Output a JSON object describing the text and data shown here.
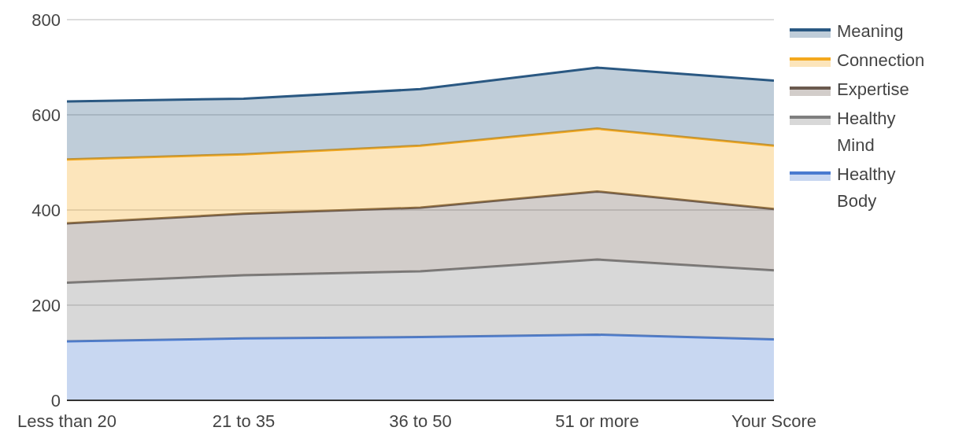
{
  "chart_data": {
    "type": "area",
    "stacked": true,
    "categories": [
      "Less than 20",
      "21 to 35",
      "36 to 50",
      "51 or more",
      "Your Score"
    ],
    "series": [
      {
        "name": "Healthy Body",
        "color": "#4a7bd0",
        "values": [
          124,
          130,
          133,
          138,
          128
        ]
      },
      {
        "name": "Healthy Mind",
        "color": "#7f7f7f",
        "values": [
          123,
          133,
          138,
          158,
          145
        ]
      },
      {
        "name": "Expertise",
        "color": "#6b5a4e",
        "values": [
          125,
          129,
          134,
          143,
          129
        ]
      },
      {
        "name": "Connection",
        "color": "#f4a81d",
        "values": [
          134,
          125,
          130,
          132,
          133
        ]
      },
      {
        "name": "Meaning",
        "color": "#2a5882",
        "values": [
          122,
          117,
          119,
          128,
          137
        ]
      }
    ],
    "ylim": [
      0,
      800
    ],
    "yticks": [
      0,
      200,
      400,
      600,
      800
    ],
    "grid": "y",
    "legend": "top right"
  }
}
